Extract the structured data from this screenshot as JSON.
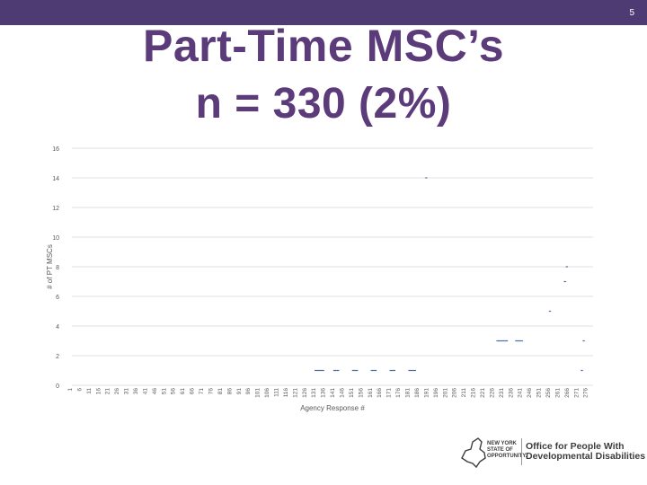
{
  "slide": {
    "number": "5"
  },
  "title": {
    "line1": "Part-Time MSC’s",
    "line2": "n = 330 (2%)"
  },
  "logo": {
    "state_lines": [
      "NEW YORK",
      "STATE OF",
      "OPPORTUNITY."
    ],
    "office_line1": "Office for People With",
    "office_line2": "Developmental Disabilities"
  },
  "colors": {
    "brand": "#4f3b73",
    "title": "#5b3b7a",
    "series": "#4a6fa5"
  },
  "chart_data": {
    "type": "scatter",
    "xlabel": "Agency Response #",
    "ylabel": "# of PT MSCs",
    "ylim": [
      0,
      16
    ],
    "xlim": [
      1,
      279
    ],
    "yticks": [
      0,
      2,
      4,
      6,
      8,
      10,
      12,
      14,
      16
    ],
    "xticks": [
      1,
      6,
      11,
      16,
      21,
      26,
      31,
      36,
      41,
      46,
      51,
      56,
      61,
      66,
      71,
      76,
      81,
      86,
      91,
      96,
      101,
      106,
      111,
      116,
      121,
      126,
      131,
      136,
      141,
      146,
      151,
      156,
      161,
      166,
      171,
      176,
      181,
      186,
      191,
      196,
      201,
      206,
      211,
      216,
      221,
      226,
      231,
      236,
      241,
      246,
      251,
      256,
      261,
      266,
      271,
      276
    ],
    "grid": true,
    "series": [
      {
        "points": [
          [
            131,
            1
          ],
          [
            132,
            1
          ],
          [
            133,
            1
          ],
          [
            134,
            1
          ],
          [
            135,
            1
          ],
          [
            141,
            1
          ],
          [
            142,
            1
          ],
          [
            143,
            1
          ],
          [
            151,
            1
          ],
          [
            152,
            1
          ],
          [
            153,
            1
          ],
          [
            161,
            1
          ],
          [
            162,
            1
          ],
          [
            163,
            1
          ],
          [
            171,
            1
          ],
          [
            172,
            1
          ],
          [
            173,
            1
          ],
          [
            181,
            1
          ],
          [
            182,
            1
          ],
          [
            183,
            1
          ],
          [
            184,
            1
          ],
          [
            190,
            14
          ],
          [
            228,
            3
          ],
          [
            229,
            3
          ],
          [
            230,
            3
          ],
          [
            231,
            3
          ],
          [
            232,
            3
          ],
          [
            233,
            3
          ],
          [
            238,
            3
          ],
          [
            239,
            3
          ],
          [
            240,
            3
          ],
          [
            241,
            3
          ],
          [
            256,
            5
          ],
          [
            264,
            7
          ],
          [
            265,
            8
          ],
          [
            273,
            1
          ],
          [
            274,
            3
          ]
        ]
      }
    ]
  }
}
